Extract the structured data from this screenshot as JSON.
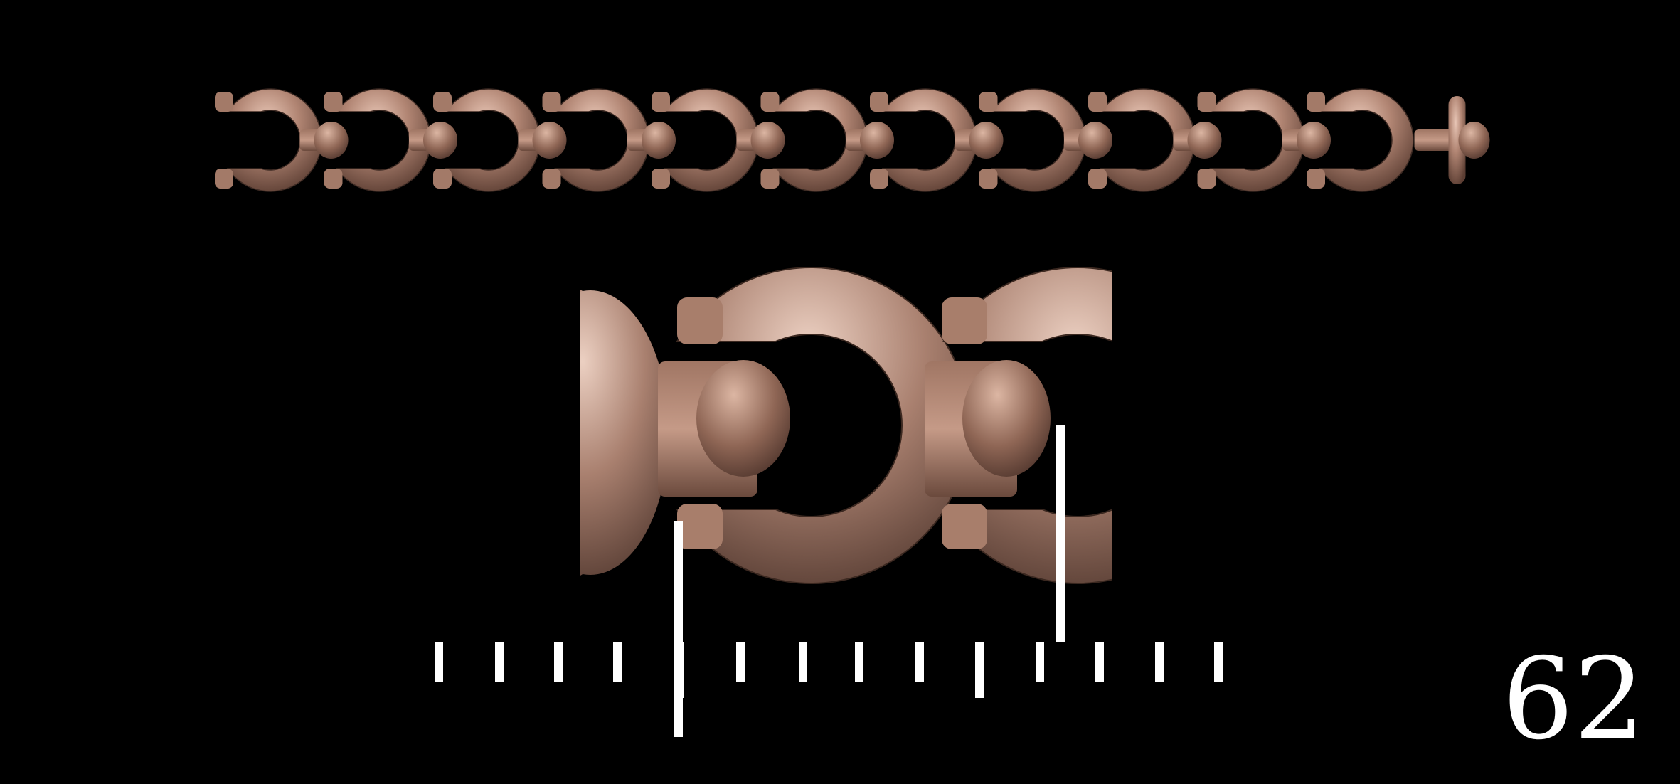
{
  "plate_number": "62",
  "colors": {
    "background": "#000000",
    "metal_light": "#e4c0b0",
    "metal_mid": "#a77b68",
    "metal_dark": "#5a3d32",
    "marker": "#ffffff"
  },
  "chain_overview": {
    "link_count": 11,
    "end_piece": "t-bar"
  },
  "detail_view": {
    "links_shown": 2
  },
  "scale": {
    "tick_count": 14,
    "indicator_lines": 2
  }
}
